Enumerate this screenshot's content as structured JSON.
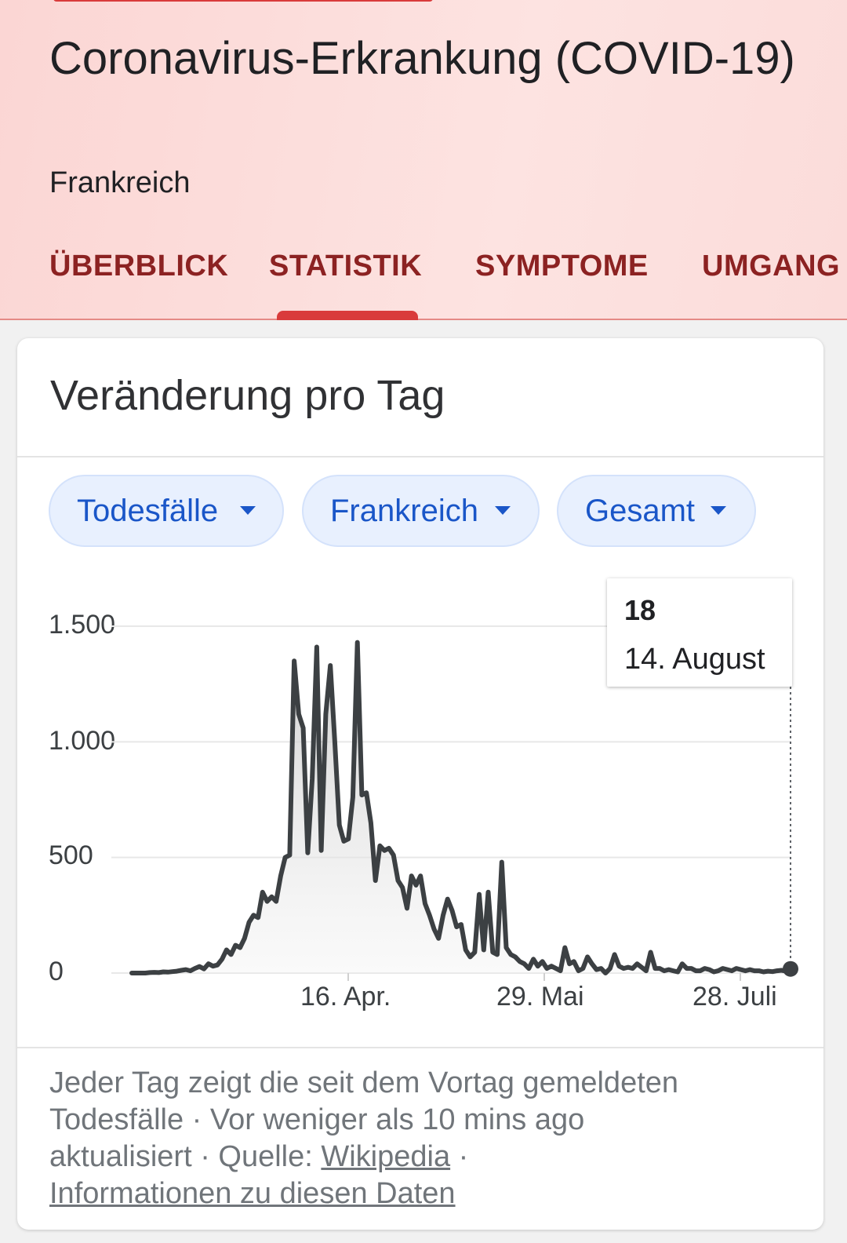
{
  "header": {
    "title": "Coronavirus-Erkrankung (COVID-19)",
    "subtitle": "Frankreich"
  },
  "tabs": [
    {
      "label": "ÜBERBLICK"
    },
    {
      "label": "STATISTIK",
      "active": true
    },
    {
      "label": "SYMPTOME"
    },
    {
      "label": "UMGANG"
    }
  ],
  "card": {
    "title": "Veränderung pro Tag",
    "filters": [
      {
        "label": "Todesfälle"
      },
      {
        "label": "Frankreich"
      },
      {
        "label": "Gesamt"
      }
    ],
    "tooltip": {
      "value": "18",
      "date": "14. August"
    },
    "footer": {
      "line1": "Jeder Tag zeigt die seit dem Vortag gemeldeten",
      "line2": "Todesfälle · Vor weniger als 10 mins ago",
      "line3_prefix": "aktualisiert · Quelle: ",
      "source_link": "Wikipedia",
      "separator": " ·",
      "info_link": "Informationen zu diesen Daten"
    }
  },
  "colors": {
    "accent": "#d93b3b",
    "tab_text": "#8c2222",
    "chip_text": "#1a56c8",
    "line": "#3c4043"
  },
  "chart_data": {
    "type": "area",
    "series": [
      {
        "values": [
          0,
          0,
          0,
          0,
          2,
          3,
          2,
          5,
          4,
          6,
          8,
          12,
          15,
          10,
          20,
          28,
          18,
          40,
          30,
          35,
          60,
          100,
          80,
          120,
          110,
          150,
          220,
          250,
          240,
          350,
          310,
          330,
          310,
          420,
          500,
          510,
          1350,
          1120,
          1060,
          520,
          840,
          1410,
          530,
          1120,
          1330,
          1000,
          640,
          570,
          580,
          760,
          1430,
          770,
          780,
          650,
          400,
          550,
          530,
          540,
          510,
          400,
          370,
          280,
          420,
          380,
          420,
          300,
          250,
          190,
          150,
          250,
          320,
          270,
          200,
          210,
          100,
          70,
          90,
          340,
          100,
          350,
          90,
          80,
          480,
          110,
          80,
          70,
          50,
          40,
          20,
          60,
          30,
          50,
          20,
          30,
          20,
          10,
          110,
          40,
          50,
          10,
          20,
          70,
          40,
          15,
          20,
          0,
          20,
          80,
          30,
          20,
          25,
          20,
          40,
          25,
          10,
          90,
          20,
          20,
          10,
          15,
          10,
          5,
          40,
          20,
          20,
          10,
          10,
          20,
          15,
          5,
          10,
          20,
          15,
          10,
          20,
          15,
          10,
          15,
          10,
          10,
          5,
          8,
          6,
          10,
          12,
          8,
          18
        ]
      }
    ],
    "x_tick_labels": [
      "16. Apr.",
      "29. Mai",
      "28. Juli"
    ],
    "y_tick_labels": [
      "1.500",
      "1.000",
      "500",
      "0"
    ],
    "y_ticks": [
      1500,
      1000,
      500,
      0
    ],
    "ylim": [
      0,
      1500
    ],
    "grid": true,
    "highlight": {
      "value": 18,
      "label": "14. August"
    }
  }
}
